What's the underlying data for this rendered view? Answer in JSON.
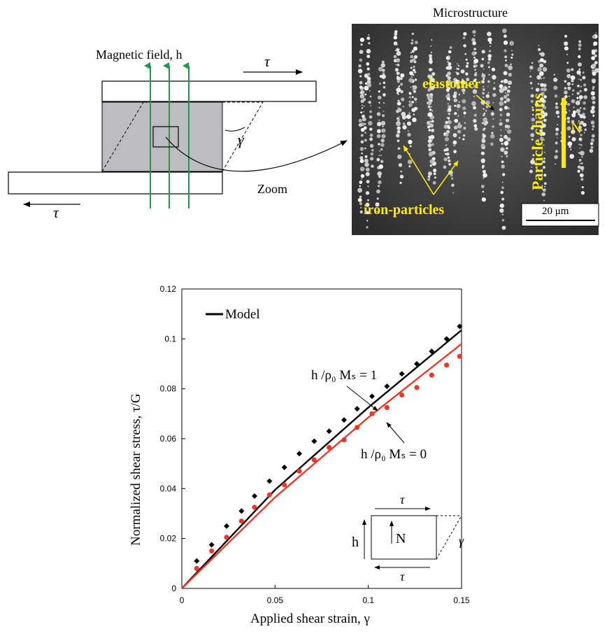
{
  "colors": {
    "field_lines": "#1a9a4a",
    "specimen_fill": "#bdbdc1",
    "micro_annot": "#ffee00",
    "model_h1": "#000000",
    "model_h0": "#e53a2a",
    "data_h1": "#000000",
    "data_h0": "#e53a2a"
  },
  "schematic": {
    "field_label": "Magnetic field, h",
    "tau_top": "τ",
    "tau_bottom": "τ",
    "gamma": "γ",
    "zoom_label": "Zoom"
  },
  "micrograph": {
    "title": "Microstructure",
    "elastomer": "elastomer",
    "iron_particles": "iron-particles",
    "particle_chains": "Particle chains",
    "n_label": "N",
    "scale_bar": "20 μm"
  },
  "inset": {
    "tau_top": "τ",
    "tau_bottom": "τ",
    "gamma": "γ",
    "h": "h",
    "n": "N"
  },
  "chart_data": {
    "type": "scatter",
    "xlabel": "Applied shear strain, γ",
    "ylabel": "Normalized shear stress, τ/G",
    "xlim": [
      0,
      0.15
    ],
    "ylim": [
      0,
      0.12
    ],
    "xticks": [
      0,
      0.05,
      0.1,
      0.15
    ],
    "xtick_labels": [
      "0",
      "0.05",
      "0.1",
      "0.15"
    ],
    "yticks": [
      0,
      0.02,
      0.04,
      0.06,
      0.08,
      0.1,
      0.12
    ],
    "ytick_labels": [
      "0",
      "0.02",
      "0.04",
      "0.06",
      "0.08",
      "0.1",
      "0.12"
    ],
    "legend": {
      "label": "Model",
      "placement": "top-left"
    },
    "annotations": {
      "h1": "h /ρ₀ Mₛ = 1",
      "h0": "h /ρ₀ Mₛ = 0"
    },
    "model_series": [
      {
        "label_key": "h1",
        "x": [
          0,
          0.05,
          0.1,
          0.15
        ],
        "y": [
          0,
          0.0395,
          0.0725,
          0.1035
        ]
      },
      {
        "label_key": "h0",
        "x": [
          0,
          0.05,
          0.1,
          0.15
        ],
        "y": [
          0,
          0.0365,
          0.0685,
          0.098
        ]
      }
    ],
    "data_series": [
      {
        "label_key": "h1",
        "marker": "diamond",
        "x": [
          0.008,
          0.016,
          0.024,
          0.032,
          0.039,
          0.047,
          0.055,
          0.063,
          0.071,
          0.079,
          0.087,
          0.094,
          0.102,
          0.11,
          0.118,
          0.126,
          0.134,
          0.142,
          0.149
        ],
        "y": [
          0.011,
          0.0175,
          0.025,
          0.031,
          0.037,
          0.043,
          0.0485,
          0.054,
          0.059,
          0.063,
          0.0675,
          0.072,
          0.077,
          0.081,
          0.086,
          0.09,
          0.095,
          0.1,
          0.105
        ]
      },
      {
        "label_key": "h0",
        "marker": "circle",
        "x": [
          0.008,
          0.016,
          0.024,
          0.032,
          0.039,
          0.047,
          0.055,
          0.063,
          0.071,
          0.079,
          0.087,
          0.094,
          0.102,
          0.11,
          0.118,
          0.126,
          0.134,
          0.142,
          0.149
        ],
        "y": [
          0.008,
          0.015,
          0.0205,
          0.027,
          0.0325,
          0.0375,
          0.0415,
          0.047,
          0.0515,
          0.0565,
          0.0595,
          0.0645,
          0.07,
          0.0725,
          0.0775,
          0.0805,
          0.0855,
          0.0895,
          0.093
        ]
      }
    ]
  }
}
